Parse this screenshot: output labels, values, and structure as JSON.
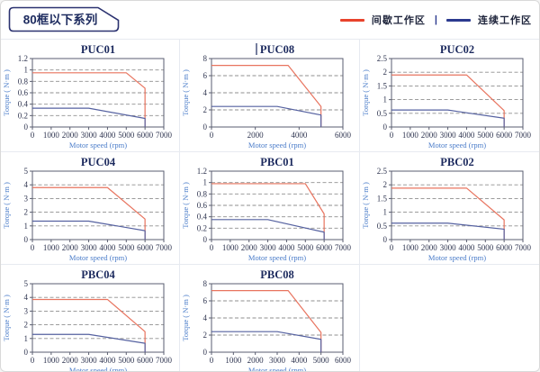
{
  "page": {
    "badge_title": "80框以下系列"
  },
  "legend": {
    "items": [
      {
        "label": "间歇工作区",
        "color": "#e8432c"
      },
      {
        "label": "连续工作区",
        "color": "#2b3a8f"
      }
    ],
    "separator": "|"
  },
  "theme": {
    "badge_border_color": "#2b3270",
    "badge_text_color": "#1c2a5e",
    "axis_color": "#5a5e70",
    "grid_color": "#8f8f8f",
    "tick_label_color": "#2f3550",
    "title_color": "#1c2a5e",
    "axis_label_color": "#4a7cc9"
  },
  "chart_data": [
    {
      "type": "line",
      "title": "PUC01",
      "title_cursor": false,
      "xlabel": "Motor speed (rpm)",
      "ylabel": "Torque ( N·m )",
      "xlim": [
        0,
        7000
      ],
      "xticks": [
        0,
        1000,
        2000,
        3000,
        4000,
        5000,
        6000,
        7000
      ],
      "ylim": [
        0,
        1.2
      ],
      "yticks": [
        0,
        0.2,
        0.4,
        0.6,
        0.8,
        1,
        1.2
      ],
      "grid": "horizontal-dashed",
      "legend_position": "none",
      "series": [
        {
          "name": "间歇工作区",
          "color": "#e8745f",
          "points": [
            [
              0,
              0.95
            ],
            [
              5000,
              0.95
            ],
            [
              6000,
              0.68
            ],
            [
              6000,
              0
            ]
          ]
        },
        {
          "name": "连续工作区",
          "color": "#5561a0",
          "points": [
            [
              0,
              0.33
            ],
            [
              3000,
              0.33
            ],
            [
              6000,
              0.15
            ],
            [
              6000,
              0
            ]
          ]
        }
      ]
    },
    {
      "type": "line",
      "title": "PUC08",
      "title_cursor": true,
      "xlabel": "Motor speed (rpm)",
      "ylabel": "Torque ( N·m )",
      "xlim": [
        0,
        6000
      ],
      "xticks": [
        0,
        2000,
        4000,
        6000
      ],
      "ylim": [
        0,
        8
      ],
      "yticks": [
        0,
        2,
        4,
        6,
        8
      ],
      "grid": "horizontal-dashed",
      "legend_position": "none",
      "series": [
        {
          "name": "间歇工作区",
          "color": "#e8745f",
          "points": [
            [
              0,
              7.2
            ],
            [
              3500,
              7.2
            ],
            [
              5000,
              2.4
            ],
            [
              5000,
              0
            ]
          ]
        },
        {
          "name": "连续工作区",
          "color": "#5561a0",
          "points": [
            [
              0,
              2.4
            ],
            [
              3000,
              2.4
            ],
            [
              5000,
              1.4
            ],
            [
              5000,
              0
            ]
          ]
        }
      ]
    },
    {
      "type": "line",
      "title": "PUC02",
      "title_cursor": false,
      "xlabel": "Motor speed (rpm)",
      "ylabel": "Torque ( N·m )",
      "xlim": [
        0,
        7000
      ],
      "xticks": [
        0,
        1000,
        2000,
        3000,
        4000,
        5000,
        6000,
        7000
      ],
      "ylim": [
        0,
        2.5
      ],
      "yticks": [
        0,
        0.5,
        1,
        1.5,
        2,
        2.5
      ],
      "grid": "horizontal-dashed",
      "legend_position": "none",
      "series": [
        {
          "name": "间歇工作区",
          "color": "#e8745f",
          "points": [
            [
              0,
              1.9
            ],
            [
              4000,
              1.9
            ],
            [
              6000,
              0.6
            ],
            [
              6000,
              0
            ]
          ]
        },
        {
          "name": "连续工作区",
          "color": "#5561a0",
          "points": [
            [
              0,
              0.62
            ],
            [
              3000,
              0.62
            ],
            [
              6000,
              0.32
            ],
            [
              6000,
              0
            ]
          ]
        }
      ]
    },
    {
      "type": "line",
      "title": "PUC04",
      "title_cursor": false,
      "xlabel": "Motor speed (rpm)",
      "ylabel": "Torque ( N·m )",
      "xlim": [
        0,
        7000
      ],
      "xticks": [
        0,
        1000,
        2000,
        3000,
        4000,
        5000,
        6000,
        7000
      ],
      "ylim": [
        0,
        5
      ],
      "yticks": [
        0,
        1,
        2,
        3,
        4,
        5
      ],
      "grid": "horizontal-dashed",
      "legend_position": "none",
      "series": [
        {
          "name": "间歇工作区",
          "color": "#e8745f",
          "points": [
            [
              0,
              3.8
            ],
            [
              4000,
              3.8
            ],
            [
              6000,
              1.5
            ],
            [
              6000,
              0
            ]
          ]
        },
        {
          "name": "连续工作区",
          "color": "#5561a0",
          "points": [
            [
              0,
              1.35
            ],
            [
              3000,
              1.35
            ],
            [
              6000,
              0.65
            ],
            [
              6000,
              0
            ]
          ]
        }
      ]
    },
    {
      "type": "line",
      "title": "PBC01",
      "title_cursor": false,
      "xlabel": "Motor speed (rpm)",
      "ylabel": "Torque ( N·m )",
      "xlim": [
        0,
        7000
      ],
      "xticks": [
        0,
        1000,
        2000,
        3000,
        4000,
        5000,
        6000,
        7000
      ],
      "ylim": [
        0,
        1.2
      ],
      "yticks": [
        0,
        0.2,
        0.4,
        0.6,
        0.8,
        1,
        1.2
      ],
      "grid": "horizontal-dashed",
      "legend_position": "none",
      "series": [
        {
          "name": "间歇工作区",
          "color": "#e8745f",
          "points": [
            [
              0,
              0.98
            ],
            [
              5000,
              0.98
            ],
            [
              6000,
              0.45
            ],
            [
              6000,
              0
            ]
          ]
        },
        {
          "name": "连续工作区",
          "color": "#5561a0",
          "points": [
            [
              0,
              0.35
            ],
            [
              3000,
              0.35
            ],
            [
              6000,
              0.13
            ],
            [
              6000,
              0
            ]
          ]
        }
      ]
    },
    {
      "type": "line",
      "title": "PBC02",
      "title_cursor": false,
      "xlabel": "Motor speed (rpm)",
      "ylabel": "Torque ( N·m )",
      "xlim": [
        0,
        7000
      ],
      "xticks": [
        0,
        1000,
        2000,
        3000,
        4000,
        5000,
        6000,
        7000
      ],
      "ylim": [
        0,
        2.5
      ],
      "yticks": [
        0,
        0.5,
        1,
        1.5,
        2,
        2.5
      ],
      "grid": "horizontal-dashed",
      "legend_position": "none",
      "series": [
        {
          "name": "间歇工作区",
          "color": "#e8745f",
          "points": [
            [
              0,
              1.88
            ],
            [
              4000,
              1.88
            ],
            [
              6000,
              0.72
            ],
            [
              6000,
              0
            ]
          ]
        },
        {
          "name": "连续工作区",
          "color": "#5561a0",
          "points": [
            [
              0,
              0.6
            ],
            [
              3000,
              0.6
            ],
            [
              6000,
              0.38
            ],
            [
              6000,
              0
            ]
          ]
        }
      ]
    },
    {
      "type": "line",
      "title": "PBC04",
      "title_cursor": false,
      "xlabel": "Motor speed (rpm)",
      "ylabel": "Torque ( N·m )",
      "xlim": [
        0,
        7000
      ],
      "xticks": [
        0,
        1000,
        2000,
        3000,
        4000,
        5000,
        6000,
        7000
      ],
      "ylim": [
        0,
        5
      ],
      "yticks": [
        0,
        1,
        2,
        3,
        4,
        5
      ],
      "grid": "horizontal-dashed",
      "legend_position": "none",
      "series": [
        {
          "name": "间歇工作区",
          "color": "#e8745f",
          "points": [
            [
              0,
              3.85
            ],
            [
              4000,
              3.85
            ],
            [
              6000,
              1.5
            ],
            [
              6000,
              0
            ]
          ]
        },
        {
          "name": "连续工作区",
          "color": "#5561a0",
          "points": [
            [
              0,
              1.3
            ],
            [
              3000,
              1.3
            ],
            [
              6000,
              0.65
            ],
            [
              6000,
              0
            ]
          ]
        }
      ]
    },
    {
      "type": "line",
      "title": "PBC08",
      "title_cursor": false,
      "xlabel": "Motor speed (rpm)",
      "ylabel": "Torque ( N·m )",
      "xlim": [
        0,
        6000
      ],
      "xticks": [
        0,
        1000,
        2000,
        3000,
        4000,
        5000,
        6000
      ],
      "ylim": [
        0,
        8
      ],
      "yticks": [
        0,
        2,
        4,
        6,
        8
      ],
      "grid": "horizontal-dashed",
      "legend_position": "none",
      "series": [
        {
          "name": "间歇工作区",
          "color": "#e8745f",
          "points": [
            [
              0,
              7.2
            ],
            [
              3500,
              7.2
            ],
            [
              5000,
              2.3
            ],
            [
              5000,
              0
            ]
          ]
        },
        {
          "name": "连续工作区",
          "color": "#5561a0",
          "points": [
            [
              0,
              2.4
            ],
            [
              3000,
              2.4
            ],
            [
              5000,
              1.5
            ],
            [
              5000,
              0
            ]
          ]
        }
      ]
    }
  ]
}
